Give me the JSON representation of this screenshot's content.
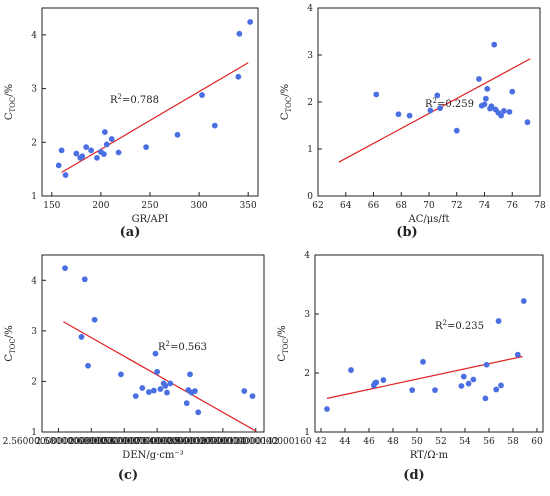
{
  "chart_data": [
    {
      "type": "scatter",
      "panel_label": "(a)",
      "title": "",
      "xlabel": "GR/API",
      "ylabel": "C_TOC/%",
      "xlim": [
        140,
        360
      ],
      "ylim": [
        1,
        4.5
      ],
      "xticks": [
        150,
        200,
        250,
        300,
        350
      ],
      "yticks": [
        1,
        2,
        3,
        4
      ],
      "grid": false,
      "annotation": "R²=0.788",
      "points": [
        [
          157,
          1.57
        ],
        [
          160,
          1.85
        ],
        [
          164,
          1.39
        ],
        [
          175,
          1.79
        ],
        [
          179,
          1.71
        ],
        [
          181,
          1.74
        ],
        [
          185,
          1.91
        ],
        [
          190,
          1.85
        ],
        [
          196,
          1.71
        ],
        [
          200,
          1.82
        ],
        [
          203,
          1.78
        ],
        [
          204,
          2.19
        ],
        [
          206,
          1.96
        ],
        [
          211,
          2.06
        ],
        [
          218,
          1.81
        ],
        [
          246,
          1.91
        ],
        [
          278,
          2.14
        ],
        [
          303,
          2.88
        ],
        [
          316,
          2.31
        ],
        [
          340,
          3.22
        ],
        [
          341,
          4.02
        ],
        [
          352,
          4.24
        ]
      ],
      "trendline": {
        "x": [
          160,
          350
        ],
        "y": [
          1.44,
          3.48
        ]
      },
      "colors": {
        "points": "#4a6fe3",
        "trendline": "#e02020"
      }
    },
    {
      "type": "scatter",
      "panel_label": "(b)",
      "title": "",
      "xlabel": "AC/μs/ft",
      "ylabel": "C_TOC/%",
      "xlim": [
        62,
        78
      ],
      "ylim": [
        0,
        4
      ],
      "xticks": [
        62,
        64,
        66,
        68,
        70,
        72,
        74,
        76,
        78
      ],
      "yticks": [
        0,
        1,
        2,
        3,
        4
      ],
      "grid": false,
      "annotation": "R²=0.259",
      "points": [
        [
          66.2,
          2.16
        ],
        [
          67.8,
          1.74
        ],
        [
          68.6,
          1.71
        ],
        [
          70.1,
          1.82
        ],
        [
          70.6,
          2.14
        ],
        [
          70.8,
          1.87
        ],
        [
          72.0,
          1.39
        ],
        [
          73.6,
          2.49
        ],
        [
          73.8,
          1.92
        ],
        [
          74.0,
          1.95
        ],
        [
          74.1,
          2.07
        ],
        [
          74.2,
          2.28
        ],
        [
          74.4,
          1.86
        ],
        [
          74.5,
          1.91
        ],
        [
          74.7,
          3.22
        ],
        [
          74.8,
          1.84
        ],
        [
          75.0,
          1.77
        ],
        [
          75.2,
          1.71
        ],
        [
          75.4,
          1.81
        ],
        [
          75.8,
          1.79
        ],
        [
          76.0,
          2.22
        ],
        [
          77.1,
          1.57
        ]
      ],
      "trendline": {
        "x": [
          63.5,
          77.3
        ],
        "y": [
          0.72,
          2.92
        ]
      },
      "colors": {
        "points": "#4a6fe3",
        "trendline": "#e02020"
      }
    },
    {
      "type": "scatter",
      "panel_label": "(c)",
      "title": "",
      "xlabel": "DEN/g·cm⁻³",
      "ylabel": "C_TOC/%",
      "xlim": [
        2.55,
        2.685
      ],
      "ylim": [
        1,
        4.5
      ],
      "xticks": [
        2.56,
        2.58,
        2.6,
        2.62,
        2.64,
        2.66,
        2.68
      ],
      "yticks": [
        1,
        2,
        3,
        4
      ],
      "grid": false,
      "annotation": "R²=0.563",
      "points": [
        [
          2.564,
          4.24
        ],
        [
          2.574,
          2.88
        ],
        [
          2.576,
          4.02
        ],
        [
          2.578,
          2.31
        ],
        [
          2.582,
          3.22
        ],
        [
          2.598,
          2.14
        ],
        [
          2.607,
          1.71
        ],
        [
          2.611,
          1.87
        ],
        [
          2.615,
          1.79
        ],
        [
          2.618,
          1.82
        ],
        [
          2.619,
          2.55
        ],
        [
          2.62,
          2.19
        ],
        [
          2.622,
          1.85
        ],
        [
          2.624,
          1.96
        ],
        [
          2.625,
          1.91
        ],
        [
          2.626,
          1.78
        ],
        [
          2.628,
          1.96
        ],
        [
          2.638,
          1.57
        ],
        [
          2.639,
          1.83
        ],
        [
          2.64,
          2.14
        ],
        [
          2.641,
          1.78
        ],
        [
          2.643,
          1.81
        ],
        [
          2.645,
          1.39
        ],
        [
          2.673,
          1.81
        ],
        [
          2.678,
          1.71
        ]
      ],
      "trendline": {
        "x": [
          2.563,
          2.68
        ],
        "y": [
          3.18,
          1.02
        ]
      },
      "colors": {
        "points": "#4a6fe3",
        "trendline": "#e02020"
      }
    },
    {
      "type": "scatter",
      "panel_label": "(d)",
      "title": "",
      "xlabel": "RT/Ω·m",
      "ylabel": "C_TOC/%",
      "xlim": [
        41.5,
        60.5
      ],
      "ylim": [
        1,
        4
      ],
      "xticks": [
        42,
        44,
        46,
        48,
        50,
        52,
        54,
        56,
        58,
        60
      ],
      "yticks": [
        1,
        2,
        3,
        4
      ],
      "grid": false,
      "annotation": "R²=0.235",
      "points": [
        [
          42.5,
          1.39
        ],
        [
          44.5,
          2.05
        ],
        [
          46.4,
          1.79
        ],
        [
          46.5,
          1.83
        ],
        [
          46.6,
          1.84
        ],
        [
          47.2,
          1.88
        ],
        [
          49.6,
          1.71
        ],
        [
          50.5,
          2.19
        ],
        [
          51.5,
          1.71
        ],
        [
          53.7,
          1.78
        ],
        [
          53.9,
          1.94
        ],
        [
          54.3,
          1.82
        ],
        [
          54.7,
          1.89
        ],
        [
          55.7,
          1.57
        ],
        [
          55.8,
          2.14
        ],
        [
          56.6,
          1.72
        ],
        [
          56.8,
          2.88
        ],
        [
          57.0,
          1.79
        ],
        [
          58.4,
          2.31
        ],
        [
          58.9,
          3.22
        ]
      ],
      "trendline": {
        "x": [
          42.5,
          58.8
        ],
        "y": [
          1.57,
          2.28
        ]
      },
      "colors": {
        "points": "#4a6fe3",
        "trendline": "#e02020"
      }
    }
  ]
}
